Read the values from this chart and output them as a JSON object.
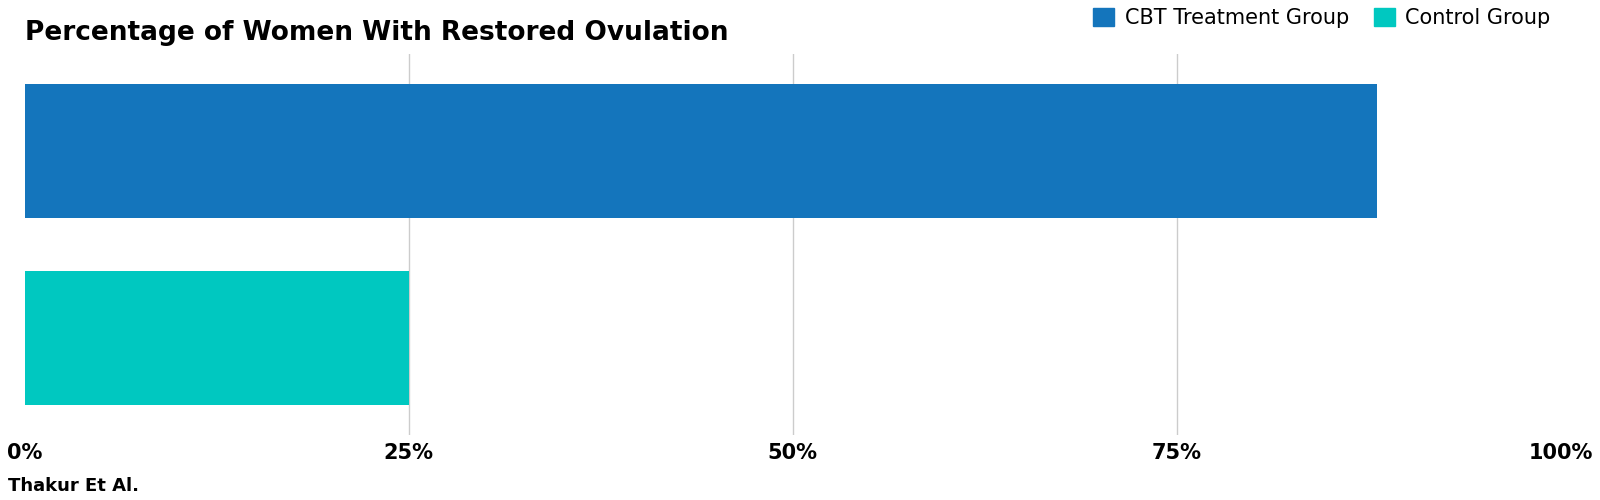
{
  "title": "Percentage of Women With Restored Ovulation",
  "categories": [
    "CBT Treatment Group",
    "Control Group"
  ],
  "values": [
    88,
    25
  ],
  "colors": [
    "#1475BC",
    "#00C8C0"
  ],
  "xlim": [
    0,
    100
  ],
  "xticks": [
    0,
    25,
    50,
    75,
    100
  ],
  "xticklabels": [
    "0%",
    "25%",
    "50%",
    "75%",
    "100%"
  ],
  "legend_labels": [
    "CBT Treatment Group",
    "Control Group"
  ],
  "legend_colors": [
    "#1475BC",
    "#00C8C0"
  ],
  "source_text": "Thakur Et Al.",
  "background_color": "#FFFFFF",
  "title_fontsize": 19,
  "tick_fontsize": 15,
  "legend_fontsize": 15,
  "source_fontsize": 13,
  "bar_height": 0.72,
  "grid_color": "#CCCCCC"
}
